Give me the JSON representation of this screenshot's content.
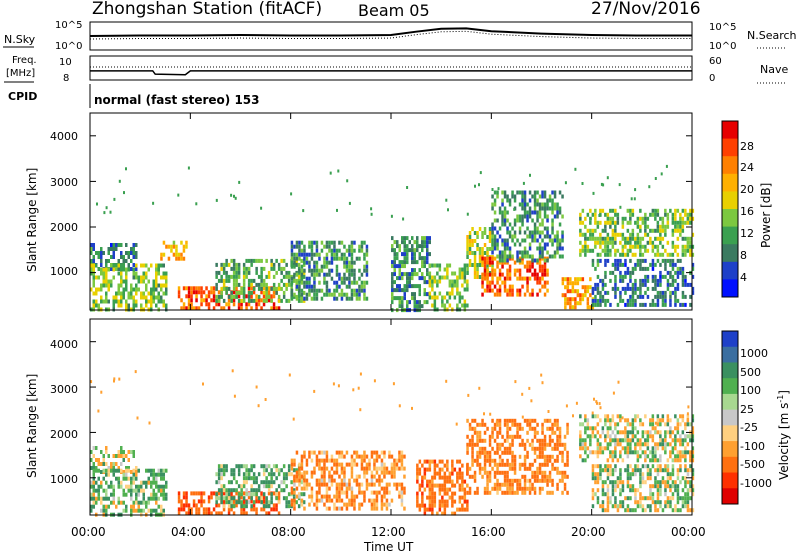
{
  "header": {
    "station": "Zhongshan Station (fitACF)",
    "beam": "Beam 05",
    "date": "27/Nov/2016"
  },
  "summary": {
    "nsky_label": "N.Sky",
    "nsky_ticks": [
      "10^5",
      "10^0"
    ],
    "nsearch_label": "N.Search",
    "freq_label_1": "Freq.",
    "freq_label_2": "[MHz]",
    "freq_ticks": [
      "10",
      "8"
    ],
    "nave_ticks": [
      "60",
      "0"
    ],
    "nave_label": "Nave",
    "cpid_label": "CPID",
    "cpid_text": "normal (fast stereo) 153"
  },
  "panels": {
    "power": {
      "ylabel": "Slant Range [km]",
      "yticks": [
        "4000",
        "3000",
        "2000",
        "1000"
      ],
      "cbar_label": "Power [dB]",
      "cbar_ticks": [
        "28",
        "24",
        "20",
        "16",
        "12",
        "8",
        "4"
      ],
      "cbar_colors": [
        "#e60000",
        "#ff4000",
        "#ff8000",
        "#ffb000",
        "#e8d000",
        "#7cc840",
        "#3aa050",
        "#3a7a60",
        "#1e40c8",
        "#0010ff"
      ]
    },
    "velocity": {
      "ylabel": "Slant Range [km]",
      "yticks": [
        "4000",
        "3000",
        "2000",
        "1000"
      ],
      "cbar_label": "Velocity [m s",
      "cbar_label_sup": "-1",
      "cbar_label_end": "]",
      "cbar_ticks": [
        "1000",
        "500",
        "100",
        "25",
        "-25",
        "-100",
        "-500",
        "-1000"
      ],
      "cbar_colors": [
        "#1e40c8",
        "#3a6ea0",
        "#3a9060",
        "#50b050",
        "#a8d890",
        "#c8c8c8",
        "#ffd080",
        "#ffa030",
        "#ff7010",
        "#ff3000",
        "#e00000"
      ]
    }
  },
  "xaxis": {
    "ticks": [
      "00:00",
      "04:00",
      "08:00",
      "12:00",
      "16:00",
      "20:00",
      "00:00"
    ],
    "label": "Time UT"
  },
  "chart_data": [
    {
      "type": "heatmap",
      "name": "power",
      "x_range_hours": [
        0,
        24
      ],
      "y_range_km": [
        180,
        4500
      ],
      "value_range_db": [
        0,
        32
      ],
      "regions": [
        {
          "t": [
            0.0,
            1.8
          ],
          "r": [
            1100,
            1650
          ],
          "v": 8
        },
        {
          "t": [
            0.0,
            3.0
          ],
          "r": [
            200,
            1200
          ],
          "v": 14
        },
        {
          "t": [
            2.8,
            3.8
          ],
          "r": [
            1300,
            1700
          ],
          "v": 20
        },
        {
          "t": [
            3.5,
            7.5
          ],
          "r": [
            200,
            700
          ],
          "v": 26
        },
        {
          "t": [
            5.0,
            8.5
          ],
          "r": [
            400,
            1300
          ],
          "v": 12
        },
        {
          "t": [
            8.0,
            11.0
          ],
          "r": [
            400,
            1700
          ],
          "v": 10
        },
        {
          "t": [
            12.0,
            13.5
          ],
          "r": [
            200,
            1800
          ],
          "v": 10
        },
        {
          "t": [
            13.5,
            15.0
          ],
          "r": [
            200,
            1200
          ],
          "v": 14
        },
        {
          "t": [
            15.0,
            16.0
          ],
          "r": [
            900,
            2000
          ],
          "v": 16
        },
        {
          "t": [
            15.6,
            18.2
          ],
          "r": [
            500,
            1350
          ],
          "v": 26
        },
        {
          "t": [
            16.0,
            18.8
          ],
          "r": [
            1300,
            2800
          ],
          "v": 10
        },
        {
          "t": [
            18.8,
            20.0
          ],
          "r": [
            200,
            900
          ],
          "v": 22
        },
        {
          "t": [
            19.5,
            24.0
          ],
          "r": [
            1400,
            2400
          ],
          "v": 14
        },
        {
          "t": [
            20.0,
            24.0
          ],
          "r": [
            300,
            1300
          ],
          "v": 8
        }
      ]
    },
    {
      "type": "heatmap",
      "name": "velocity",
      "x_range_hours": [
        0,
        24
      ],
      "y_range_km": [
        180,
        4500
      ],
      "value_range_ms": [
        -1000,
        1000
      ],
      "regions": [
        {
          "t": [
            0.0,
            1.8
          ],
          "r": [
            1100,
            1700
          ],
          "v": 0
        },
        {
          "t": [
            0.0,
            3.0
          ],
          "r": [
            200,
            1200
          ],
          "v": 100
        },
        {
          "t": [
            3.5,
            7.5
          ],
          "r": [
            200,
            700
          ],
          "v": -400
        },
        {
          "t": [
            5.0,
            8.5
          ],
          "r": [
            400,
            1300
          ],
          "v": 150
        },
        {
          "t": [
            8.0,
            12.5
          ],
          "r": [
            300,
            1600
          ],
          "v": -200
        },
        {
          "t": [
            13.0,
            15.0
          ],
          "r": [
            200,
            1400
          ],
          "v": -300
        },
        {
          "t": [
            15.0,
            19.0
          ],
          "r": [
            700,
            2300
          ],
          "v": -250
        },
        {
          "t": [
            19.5,
            24.0
          ],
          "r": [
            1400,
            2400
          ],
          "v": 0
        },
        {
          "t": [
            20.0,
            24.0
          ],
          "r": [
            300,
            1300
          ],
          "v": 50
        }
      ]
    },
    {
      "type": "line",
      "name": "n_sky",
      "x": [
        0,
        2,
        4,
        6,
        8,
        10,
        12,
        13,
        14,
        15,
        16,
        18,
        20,
        22,
        24
      ],
      "y": [
        2.5,
        2.6,
        2.6,
        2.7,
        2.6,
        2.6,
        2.7,
        3.4,
        4.0,
        4.1,
        3.5,
        3.0,
        2.7,
        2.6,
        2.6
      ]
    },
    {
      "type": "line",
      "name": "freq",
      "x": [
        0,
        2.5,
        2.6,
        3.8,
        4.0,
        24
      ],
      "y": [
        8.3,
        8.3,
        7.7,
        7.6,
        8.3,
        8.3
      ]
    }
  ]
}
